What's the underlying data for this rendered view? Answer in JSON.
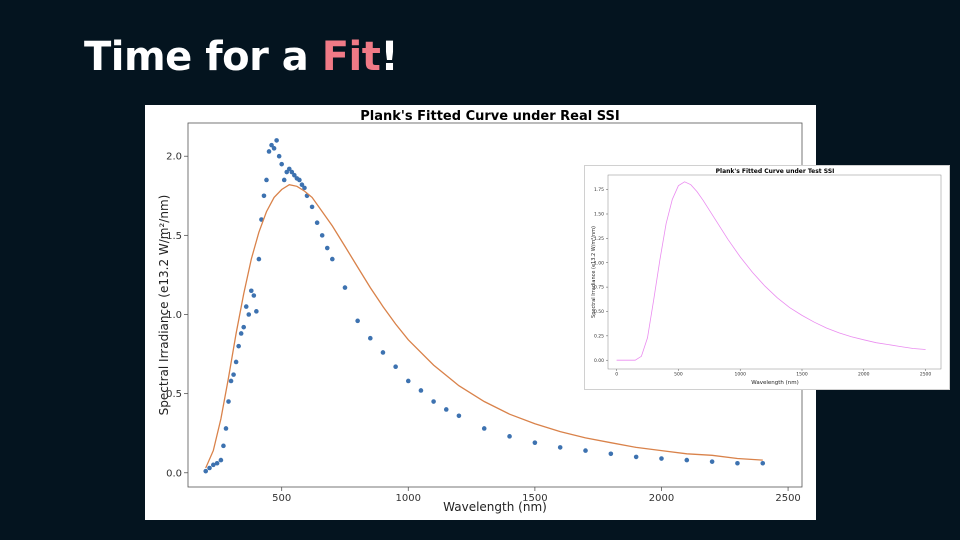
{
  "slide": {
    "title_prefix": "Time for a ",
    "title_accent": "Fit",
    "title_suffix": "!",
    "accent_color": "#f07a86",
    "background": "#04141f"
  },
  "chart_data": [
    {
      "type": "scatter",
      "title": "Plank's Fitted Curve under Real SSI",
      "xlabel": "Wavelength (nm)",
      "ylabel": "Spectral Irradiance (e13.2 W/m²/nm)",
      "xlim": [
        130,
        2555
      ],
      "ylim": [
        -0.09,
        2.21
      ],
      "xticks": [
        500,
        1000,
        1500,
        2000,
        2500
      ],
      "xtick_labels": [
        "500",
        "1000",
        "1500",
        "2000",
        "2500"
      ],
      "yticks": [
        0.0,
        0.5,
        1.0,
        1.5,
        2.0
      ],
      "ytick_labels": [
        "0.0",
        "0.5",
        "1.0",
        "1.5",
        "2.0"
      ],
      "grid": false,
      "series": [
        {
          "kind": "scatter",
          "color": "#3d72b0",
          "x": [
            200,
            215,
            230,
            245,
            260,
            270,
            280,
            290,
            300,
            310,
            320,
            330,
            340,
            350,
            360,
            370,
            380,
            390,
            400,
            410,
            420,
            430,
            440,
            450,
            460,
            470,
            480,
            490,
            500,
            510,
            520,
            530,
            540,
            550,
            560,
            570,
            580,
            590,
            600,
            620,
            640,
            660,
            680,
            700,
            750,
            800,
            850,
            900,
            950,
            1000,
            1050,
            1100,
            1150,
            1200,
            1300,
            1400,
            1500,
            1600,
            1700,
            1800,
            1900,
            2000,
            2100,
            2200,
            2300,
            2400
          ],
          "y": [
            0.01,
            0.03,
            0.05,
            0.06,
            0.08,
            0.17,
            0.28,
            0.45,
            0.58,
            0.62,
            0.7,
            0.8,
            0.88,
            0.92,
            1.05,
            1.0,
            1.15,
            1.12,
            1.02,
            1.35,
            1.6,
            1.75,
            1.85,
            2.03,
            2.07,
            2.05,
            2.1,
            2.0,
            1.95,
            1.85,
            1.9,
            1.92,
            1.9,
            1.88,
            1.86,
            1.85,
            1.82,
            1.8,
            1.75,
            1.68,
            1.58,
            1.5,
            1.42,
            1.35,
            1.17,
            0.96,
            0.85,
            0.76,
            0.67,
            0.58,
            0.52,
            0.45,
            0.4,
            0.36,
            0.28,
            0.23,
            0.19,
            0.16,
            0.14,
            0.12,
            0.1,
            0.09,
            0.08,
            0.07,
            0.06,
            0.06
          ]
        },
        {
          "kind": "line",
          "color": "#d9824a",
          "x": [
            200,
            230,
            260,
            290,
            320,
            350,
            380,
            410,
            440,
            470,
            500,
            530,
            560,
            590,
            620,
            660,
            700,
            750,
            800,
            850,
            900,
            950,
            1000,
            1100,
            1200,
            1300,
            1400,
            1500,
            1600,
            1700,
            1800,
            1900,
            2000,
            2100,
            2200,
            2300,
            2400
          ],
          "y": [
            0.03,
            0.14,
            0.34,
            0.6,
            0.88,
            1.13,
            1.35,
            1.52,
            1.65,
            1.74,
            1.79,
            1.82,
            1.81,
            1.78,
            1.74,
            1.65,
            1.56,
            1.43,
            1.3,
            1.17,
            1.05,
            0.94,
            0.84,
            0.68,
            0.55,
            0.45,
            0.37,
            0.31,
            0.26,
            0.22,
            0.19,
            0.16,
            0.14,
            0.12,
            0.11,
            0.09,
            0.08
          ]
        }
      ]
    },
    {
      "type": "line",
      "title": "Plank's Fitted Curve under Test SSI",
      "xlabel": "Wavelength (nm)",
      "ylabel": "Spectral Irradiance (e13.2 W/m²/nm)",
      "xlim": [
        -70,
        2625
      ],
      "ylim": [
        -0.09,
        1.9
      ],
      "xticks": [
        0,
        500,
        1000,
        1500,
        2000,
        2500
      ],
      "xtick_labels": [
        "0",
        "500",
        "1000",
        "1500",
        "2000",
        "2500"
      ],
      "yticks": [
        0.0,
        0.25,
        0.5,
        0.75,
        1.0,
        1.25,
        1.5,
        1.75
      ],
      "ytick_labels": [
        "0.00",
        "0.25",
        "0.50",
        "0.75",
        "1.00",
        "1.25",
        "1.50",
        "1.75"
      ],
      "grid": false,
      "series": [
        {
          "kind": "line",
          "color": "#ea8cf0",
          "x": [
            0,
            100,
            150,
            200,
            250,
            300,
            350,
            400,
            450,
            500,
            550,
            600,
            650,
            700,
            800,
            900,
            1000,
            1100,
            1200,
            1300,
            1400,
            1500,
            1600,
            1700,
            1800,
            1900,
            2000,
            2100,
            2200,
            2300,
            2400,
            2500
          ],
          "y": [
            0.0,
            0.0,
            0.0,
            0.04,
            0.23,
            0.62,
            1.03,
            1.4,
            1.65,
            1.79,
            1.83,
            1.8,
            1.73,
            1.64,
            1.44,
            1.24,
            1.06,
            0.9,
            0.76,
            0.64,
            0.54,
            0.46,
            0.39,
            0.33,
            0.28,
            0.24,
            0.21,
            0.18,
            0.16,
            0.14,
            0.12,
            0.11
          ]
        }
      ]
    }
  ]
}
